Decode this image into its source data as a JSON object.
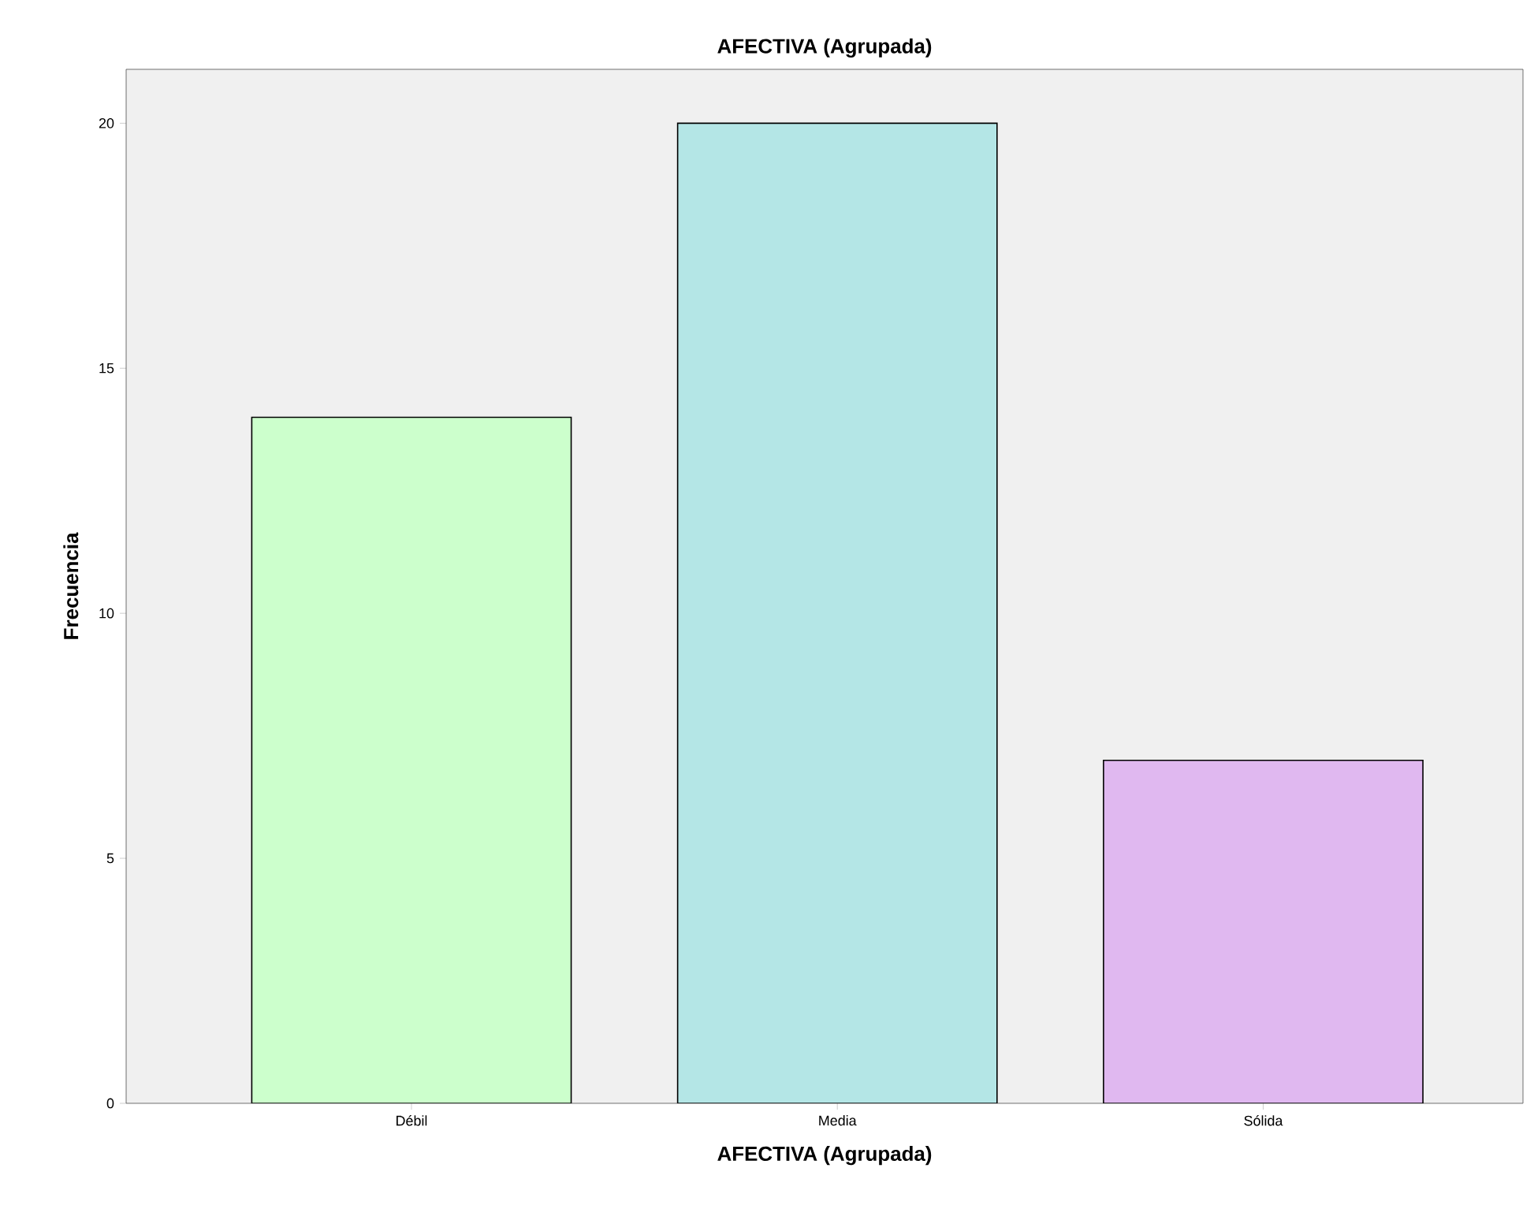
{
  "chart_data": {
    "type": "bar",
    "title": "AFECTIVA (Agrupada)",
    "xlabel": "AFECTIVA (Agrupada)",
    "ylabel": "Frecuencia",
    "categories": [
      "Débil",
      "Media",
      "Sólida"
    ],
    "values": [
      14,
      20,
      7
    ],
    "colors": [
      "#ccffcc",
      "#b4e6e6",
      "#e0b8f0"
    ],
    "ylim": [
      0,
      21.1
    ],
    "yticks": [
      0,
      5,
      10,
      15,
      20
    ],
    "grid": false
  }
}
